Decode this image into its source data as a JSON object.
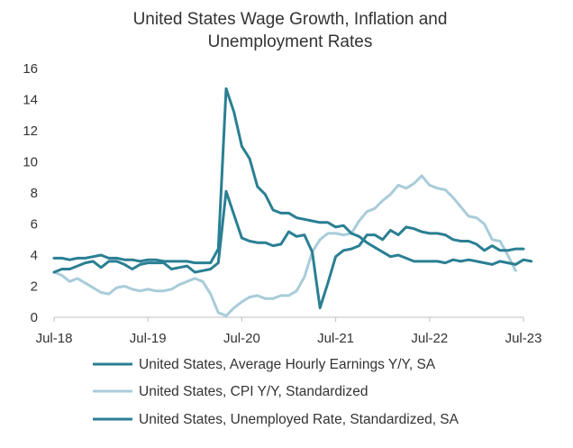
{
  "chart_data": {
    "type": "line",
    "title_lines": [
      "United States Wage Growth, Inflation and",
      "Unemployment Rates"
    ],
    "xlabel": "",
    "ylabel": "",
    "ylim": [
      0,
      16
    ],
    "yticks": [
      0,
      2,
      4,
      6,
      8,
      10,
      12,
      14,
      16
    ],
    "x_start_month": "2018-07",
    "x_tick_labels": [
      "Jul-18",
      "Jul-19",
      "Jul-20",
      "Jul-21",
      "Jul-22",
      "Jul-23"
    ],
    "x_tick_month_index": [
      0,
      12,
      24,
      36,
      48,
      60
    ],
    "x_max_month_index": 60,
    "grid": false,
    "legend_position": "bottom",
    "series": [
      {
        "name": "United States, Average Hourly Earnings Y/Y, SA",
        "color": "#2a7f93",
        "start_month_index": 0,
        "values": [
          2.9,
          3.1,
          3.1,
          3.3,
          3.5,
          3.6,
          3.2,
          3.6,
          3.6,
          3.4,
          3.1,
          3.4,
          3.5,
          3.5,
          3.5,
          3.1,
          3.2,
          3.3,
          2.9,
          3.0,
          3.1,
          3.5,
          8.1,
          6.6,
          5.1,
          4.9,
          4.8,
          4.8,
          4.6,
          4.7,
          5.5,
          5.2,
          5.3,
          4.2,
          0.6,
          2.2,
          3.9,
          4.3,
          4.4,
          4.6,
          5.3,
          5.3,
          5.0,
          5.6,
          5.3,
          5.8,
          5.7,
          5.5,
          5.4,
          5.4,
          5.3,
          5.0,
          4.9,
          4.9,
          4.7,
          4.3,
          4.6,
          4.3,
          4.3,
          4.4,
          4.4
        ]
      },
      {
        "name": "United States, CPI Y/Y, Standardized",
        "color": "#a9ccd9",
        "start_month_index": 0,
        "values": [
          2.9,
          2.7,
          2.3,
          2.5,
          2.2,
          1.9,
          1.6,
          1.5,
          1.9,
          2.0,
          1.8,
          1.7,
          1.8,
          1.7,
          1.7,
          1.8,
          2.1,
          2.3,
          2.5,
          2.3,
          1.5,
          0.3,
          0.1,
          0.6,
          1.0,
          1.3,
          1.4,
          1.2,
          1.2,
          1.4,
          1.4,
          1.7,
          2.6,
          4.2,
          5.0,
          5.4,
          5.4,
          5.3,
          5.4,
          6.2,
          6.8,
          7.0,
          7.5,
          7.9,
          8.5,
          8.3,
          8.6,
          9.1,
          8.5,
          8.3,
          8.2,
          7.7,
          7.1,
          6.5,
          6.4,
          6.0,
          5.0,
          4.9,
          4.0,
          3.0
        ]
      },
      {
        "name": "United States, Unemployed Rate, Standardized, SA",
        "color": "#2a7f93",
        "start_month_index": 0,
        "values": [
          3.8,
          3.8,
          3.7,
          3.8,
          3.8,
          3.9,
          4.0,
          3.8,
          3.8,
          3.7,
          3.7,
          3.6,
          3.7,
          3.7,
          3.6,
          3.6,
          3.6,
          3.6,
          3.5,
          3.5,
          3.5,
          4.4,
          14.7,
          13.2,
          11.0,
          10.2,
          8.4,
          7.9,
          6.9,
          6.7,
          6.7,
          6.4,
          6.3,
          6.2,
          6.1,
          6.1,
          5.8,
          5.9,
          5.4,
          5.2,
          4.8,
          4.5,
          4.2,
          3.9,
          4.0,
          3.8,
          3.6,
          3.6,
          3.6,
          3.6,
          3.5,
          3.7,
          3.6,
          3.7,
          3.6,
          3.5,
          3.4,
          3.6,
          3.5,
          3.4,
          3.7,
          3.6
        ]
      }
    ]
  }
}
